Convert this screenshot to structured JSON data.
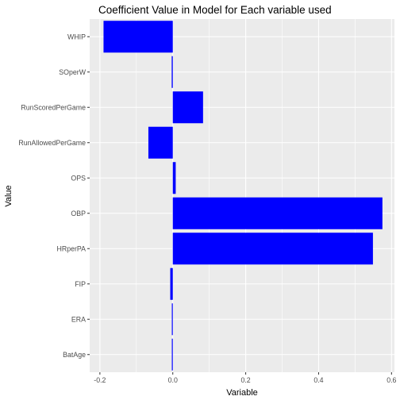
{
  "chart_data": {
    "type": "bar",
    "orientation": "horizontal",
    "title": "Coefficient Value in Model for Each variable used",
    "xlabel": "Variable",
    "ylabel": "Value",
    "categories": [
      "WHIP",
      "SOperW",
      "RunScoredPerGame",
      "RunAllowedPerGame",
      "OPS",
      "OBP",
      "HRperPA",
      "FIP",
      "ERA",
      "BatAge"
    ],
    "values": [
      -0.19,
      -0.003,
      0.083,
      -0.067,
      0.008,
      0.575,
      0.549,
      -0.007,
      -0.002,
      -0.001
    ],
    "xlim": [
      -0.228,
      0.608
    ],
    "xticks": [
      -0.2,
      0.0,
      0.2,
      0.4,
      0.6
    ],
    "xtick_labels": [
      "-0.2",
      "0.0",
      "0.2",
      "0.4",
      "0.6"
    ],
    "grid": true,
    "bar_color": "#0000ff",
    "panel_background": "#ebebeb",
    "grid_color": "#ffffff"
  }
}
